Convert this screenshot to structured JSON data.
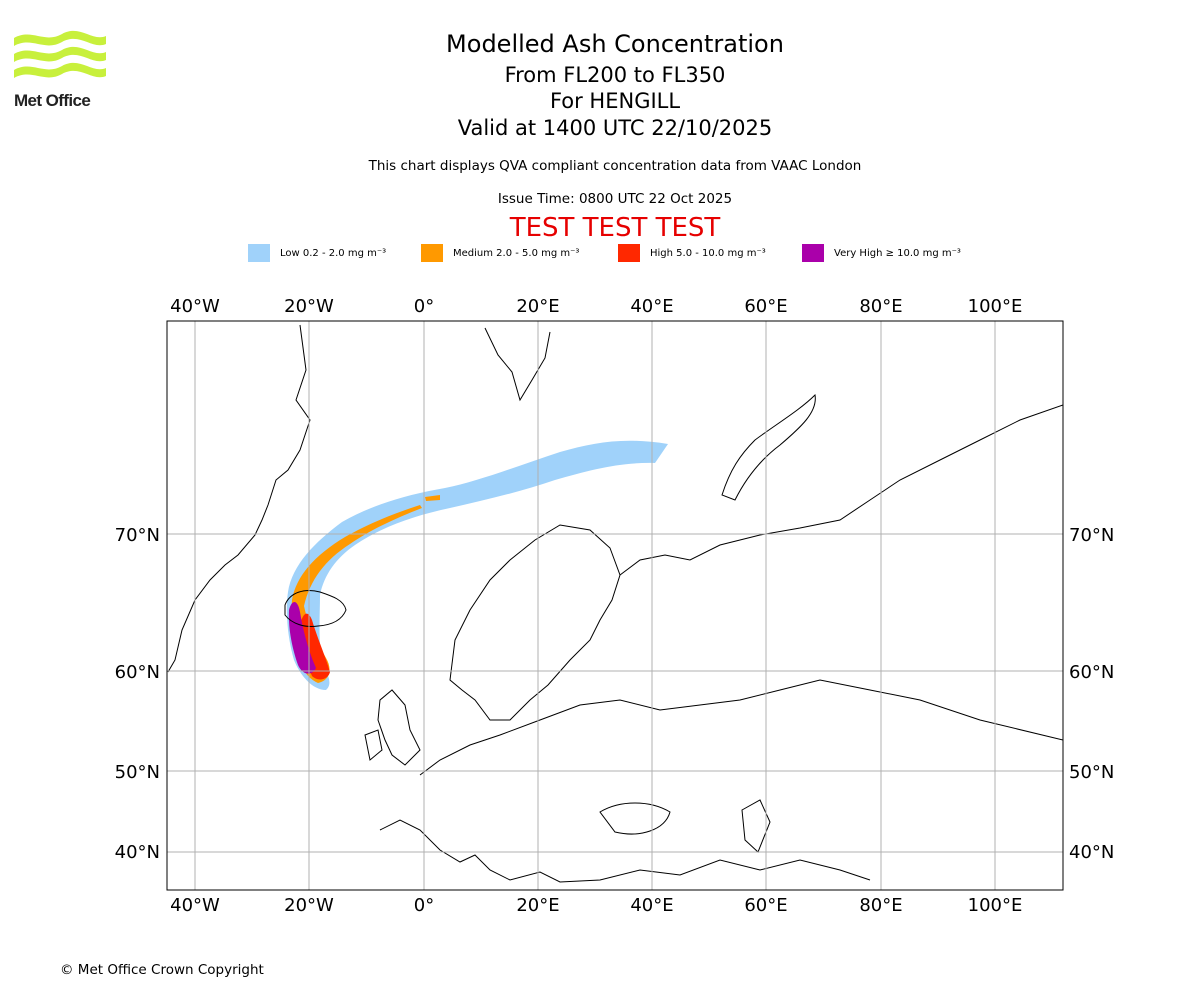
{
  "header": {
    "logo_text": "Met Office",
    "title": "Modelled Ash Concentration",
    "levels": "From FL200 to FL350",
    "volcano": "For HENGILL",
    "valid": "Valid at 1400 UTC 22/10/2025",
    "disclaimer": "This chart displays QVA compliant concentration data from VAAC London",
    "issue_time": "Issue Time: 0800 UTC 22 Oct 2025",
    "test_banner": "TEST TEST TEST"
  },
  "legend": {
    "items": [
      {
        "label": "Low 0.2 - 2.0 mg m⁻³",
        "color": "#a0d2fa"
      },
      {
        "label": "Medium 2.0 - 5.0 mg m⁻³",
        "color": "#ff9900"
      },
      {
        "label": "High 5.0 - 10.0 mg m⁻³",
        "color": "#ff2800"
      },
      {
        "label": "Very High ≥ 10.0 mg m⁻³",
        "color": "#aa00aa"
      }
    ]
  },
  "map": {
    "lon_ticks": [
      "40°W",
      "20°W",
      "0°",
      "20°E",
      "40°E",
      "60°E",
      "80°E",
      "100°E"
    ],
    "lat_ticks": [
      "70°N",
      "60°N",
      "50°N",
      "40°N"
    ],
    "gridline_color": "#b0b0b0"
  },
  "footer": {
    "copyright": "© Met Office Crown Copyright"
  }
}
